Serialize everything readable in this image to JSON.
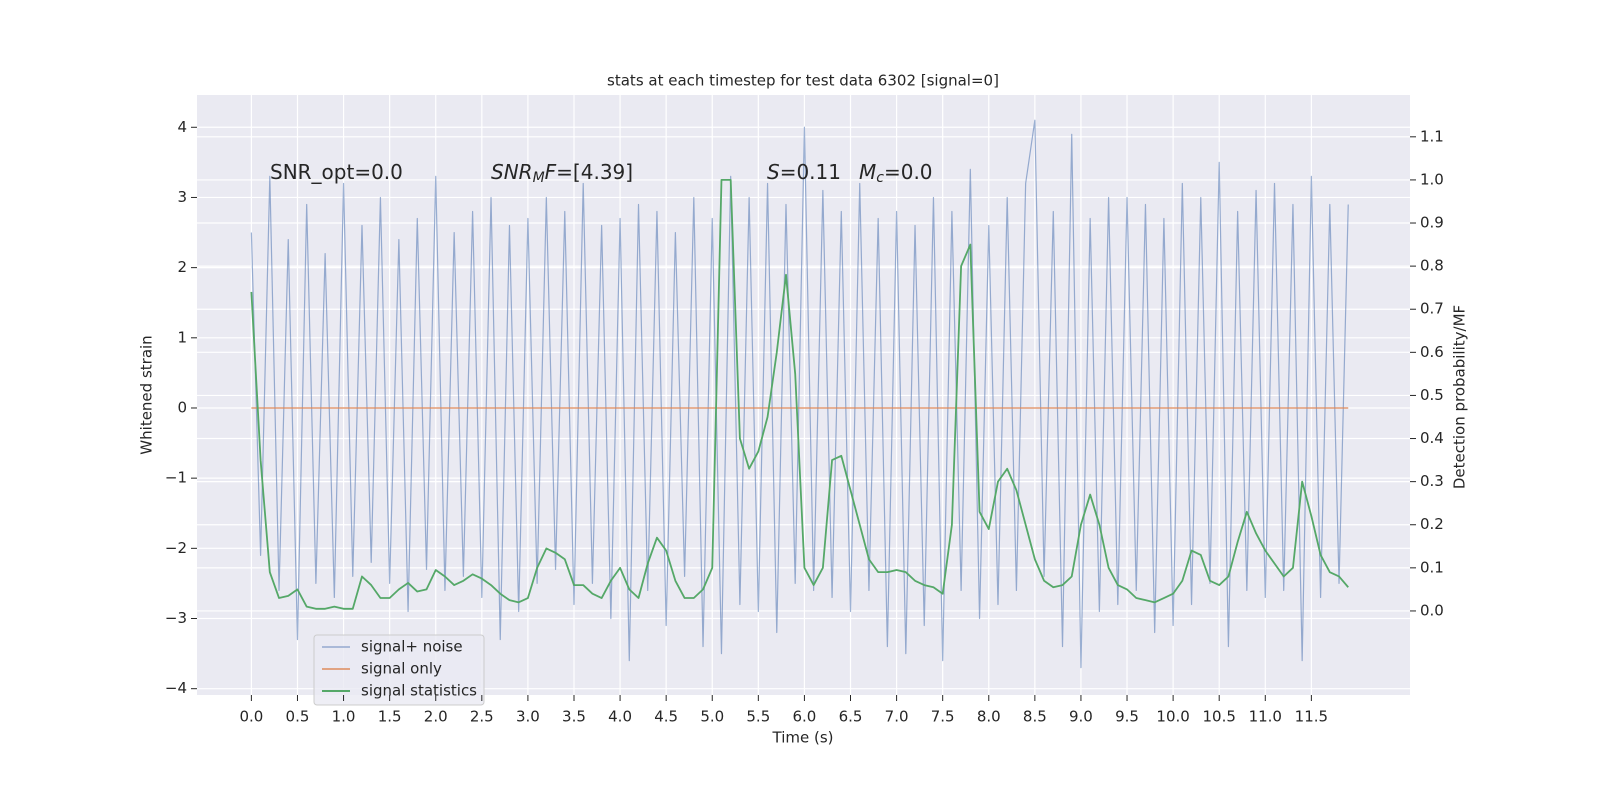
{
  "chart_data": {
    "type": "line",
    "title": "stats at each timestep for test data 6302 [signal=0]",
    "xlabel": "Time (s)",
    "ylabel": "Whitened strain",
    "y2label": "Detection probability/MF",
    "annotations": [
      [
        {
          "text": "SNR_opt=0.0"
        }
      ],
      [
        {
          "text": "SNR",
          "italic": true
        },
        {
          "text": "M",
          "italic": true,
          "sub": true
        },
        {
          "text": "F",
          "italic": true
        },
        {
          "text": "=[4.39]"
        }
      ],
      [
        {
          "text": "S",
          "italic": true
        },
        {
          "text": "=0.11"
        }
      ],
      [
        {
          "text": "M",
          "italic": true
        },
        {
          "text": "c",
          "italic": true,
          "sub": true
        },
        {
          "text": "=0.0"
        }
      ]
    ],
    "x": [
      0.0,
      0.1,
      0.2,
      0.3,
      0.4,
      0.5,
      0.6,
      0.7,
      0.8,
      0.9,
      1.0,
      1.1,
      1.2,
      1.3,
      1.4,
      1.5,
      1.6,
      1.7,
      1.8,
      1.9,
      2.0,
      2.1,
      2.2,
      2.3,
      2.4,
      2.5,
      2.6,
      2.7,
      2.8,
      2.9,
      3.0,
      3.1,
      3.2,
      3.3,
      3.4,
      3.5,
      3.6,
      3.7,
      3.8,
      3.9,
      4.0,
      4.1,
      4.2,
      4.3,
      4.4,
      4.5,
      4.6,
      4.7,
      4.8,
      4.9,
      5.0,
      5.1,
      5.2,
      5.3,
      5.4,
      5.5,
      5.6,
      5.7,
      5.8,
      5.9,
      6.0,
      6.1,
      6.2,
      6.3,
      6.4,
      6.5,
      6.6,
      6.7,
      6.8,
      6.9,
      7.0,
      7.1,
      7.2,
      7.3,
      7.4,
      7.5,
      7.6,
      7.7,
      7.8,
      7.9,
      8.0,
      8.1,
      8.2,
      8.3,
      8.4,
      8.5,
      8.6,
      8.7,
      8.8,
      8.9,
      9.0,
      9.1,
      9.2,
      9.3,
      9.4,
      9.5,
      9.6,
      9.7,
      9.8,
      9.9,
      10.0,
      10.1,
      10.2,
      10.3,
      10.4,
      10.5,
      10.6,
      10.7,
      10.8,
      10.9,
      11.0,
      11.1,
      11.2,
      11.3,
      11.4,
      11.5,
      11.6,
      11.7,
      11.8,
      11.9
    ],
    "series": [
      {
        "name": "signal+ noise",
        "color": "#4c72b0",
        "axis": "y",
        "values": [
          2.5,
          -2.1,
          3.3,
          -2.6,
          2.4,
          -3.3,
          2.9,
          -2.5,
          2.2,
          -2.7,
          3.2,
          -2.4,
          2.6,
          -2.2,
          3.0,
          -2.5,
          2.4,
          -2.9,
          2.7,
          -2.3,
          3.3,
          -2.6,
          2.5,
          -2.4,
          2.8,
          -2.7,
          3.0,
          -3.3,
          2.6,
          -2.9,
          2.7,
          -2.5,
          3.0,
          -2.3,
          2.8,
          -2.8,
          3.2,
          -2.5,
          2.6,
          -3.0,
          2.7,
          -3.6,
          2.9,
          -2.6,
          2.8,
          -3.1,
          2.5,
          -2.4,
          3.0,
          -3.4,
          2.7,
          -3.5,
          3.3,
          -2.8,
          3.0,
          -2.9,
          3.2,
          -3.2,
          2.9,
          -2.5,
          4.0,
          -2.6,
          3.1,
          -2.7,
          2.8,
          -2.9,
          3.2,
          -2.6,
          2.7,
          -3.4,
          2.8,
          -3.5,
          2.6,
          -3.1,
          3.0,
          -3.6,
          2.8,
          -2.6,
          3.4,
          -3.0,
          2.6,
          -2.8,
          3.0,
          -2.6,
          3.2,
          4.1,
          -2.4,
          2.8,
          -3.4,
          3.9,
          -3.7,
          2.7,
          -2.9,
          3.0,
          -2.8,
          3.0,
          -2.6,
          2.9,
          -3.2,
          2.7,
          -3.1,
          3.2,
          -2.8,
          3.0,
          -2.5,
          3.5,
          -3.4,
          2.8,
          -2.6,
          3.1,
          -2.7,
          3.2,
          -2.6,
          2.9,
          -3.6,
          3.3,
          -2.7,
          2.9,
          -2.5,
          2.9
        ]
      },
      {
        "name": "signal only",
        "color": "#dd8452",
        "axis": "y",
        "values": [
          0,
          0,
          0,
          0,
          0,
          0,
          0,
          0,
          0,
          0,
          0,
          0,
          0,
          0,
          0,
          0,
          0,
          0,
          0,
          0,
          0,
          0,
          0,
          0,
          0,
          0,
          0,
          0,
          0,
          0,
          0,
          0,
          0,
          0,
          0,
          0,
          0,
          0,
          0,
          0,
          0,
          0,
          0,
          0,
          0,
          0,
          0,
          0,
          0,
          0,
          0,
          0,
          0,
          0,
          0,
          0,
          0,
          0,
          0,
          0,
          0,
          0,
          0,
          0,
          0,
          0,
          0,
          0,
          0,
          0,
          0,
          0,
          0,
          0,
          0,
          0,
          0,
          0,
          0,
          0,
          0,
          0,
          0,
          0,
          0,
          0,
          0,
          0,
          0,
          0,
          0,
          0,
          0,
          0,
          0,
          0,
          0,
          0,
          0,
          0,
          0,
          0,
          0,
          0,
          0,
          0,
          0,
          0,
          0,
          0,
          0,
          0,
          0,
          0,
          0,
          0,
          0,
          0,
          0,
          0
        ]
      },
      {
        "name": "signal statistics",
        "color": "#55a868",
        "axis": "y2",
        "values": [
          0.74,
          0.35,
          0.09,
          0.03,
          0.035,
          0.05,
          0.01,
          0.005,
          0.005,
          0.01,
          0.005,
          0.005,
          0.08,
          0.06,
          0.03,
          0.03,
          0.05,
          0.065,
          0.045,
          0.05,
          0.095,
          0.08,
          0.06,
          0.07,
          0.085,
          0.075,
          0.06,
          0.04,
          0.025,
          0.02,
          0.03,
          0.1,
          0.145,
          0.135,
          0.12,
          0.06,
          0.06,
          0.04,
          0.03,
          0.07,
          0.1,
          0.05,
          0.03,
          0.11,
          0.17,
          0.14,
          0.07,
          0.03,
          0.03,
          0.05,
          0.1,
          1.0,
          1.0,
          0.4,
          0.33,
          0.37,
          0.45,
          0.6,
          0.78,
          0.55,
          0.1,
          0.06,
          0.1,
          0.35,
          0.36,
          0.28,
          0.2,
          0.12,
          0.09,
          0.09,
          0.095,
          0.09,
          0.07,
          0.06,
          0.055,
          0.04,
          0.2,
          0.8,
          0.85,
          0.23,
          0.19,
          0.3,
          0.33,
          0.28,
          0.2,
          0.12,
          0.07,
          0.055,
          0.06,
          0.08,
          0.2,
          0.27,
          0.2,
          0.1,
          0.06,
          0.05,
          0.03,
          0.025,
          0.02,
          0.03,
          0.04,
          0.07,
          0.14,
          0.13,
          0.07,
          0.06,
          0.08,
          0.16,
          0.23,
          0.18,
          0.14,
          0.11,
          0.08,
          0.1,
          0.3,
          0.22,
          0.13,
          0.09,
          0.08,
          0.055
        ]
      }
    ],
    "xlim": [
      -0.59,
      12.57
    ],
    "ylim": [
      -4.09,
      4.46
    ],
    "y2lim": [
      -0.195,
      1.197
    ],
    "xticks": [
      {
        "value": 0,
        "label": "0.0"
      },
      0.5,
      {
        "value": 1,
        "label": "1.0"
      },
      1.5,
      {
        "value": 2,
        "label": "2.0"
      },
      2.5,
      {
        "value": 3,
        "label": "3.0"
      },
      3.5,
      {
        "value": 4,
        "label": "4.0"
      },
      4.5,
      {
        "value": 5,
        "label": "5.0"
      },
      5.5,
      {
        "value": 6,
        "label": "6.0"
      },
      6.5,
      {
        "value": 7,
        "label": "7.0"
      },
      7.5,
      {
        "value": 8,
        "label": "8.0"
      },
      8.5,
      {
        "value": 9,
        "label": "9.0"
      },
      9.5,
      {
        "value": 10,
        "label": "10.0"
      },
      10.5,
      {
        "value": 11,
        "label": "11.0"
      },
      11.5
    ],
    "yticks": [
      {
        "value": -4,
        "label": "−4"
      },
      {
        "value": -3,
        "label": "−3"
      },
      {
        "value": -2,
        "label": "−2"
      },
      {
        "value": -1,
        "label": "−1"
      },
      0,
      1,
      2,
      3,
      4
    ],
    "y2ticks": [
      {
        "value": 0,
        "label": "0.0"
      },
      0.1,
      0.2,
      0.3,
      0.4,
      0.5,
      0.6,
      0.7,
      0.8,
      0.9,
      {
        "value": 1,
        "label": "1.0"
      },
      1.1
    ],
    "grid": true,
    "legend": "lower left"
  }
}
